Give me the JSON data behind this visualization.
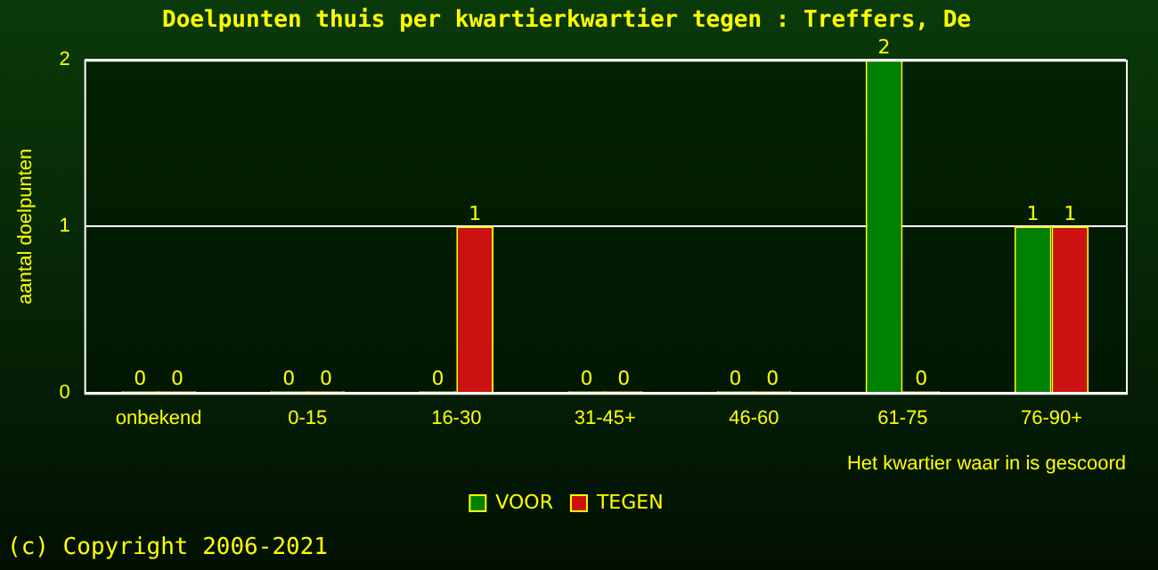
{
  "chart_data": {
    "type": "bar",
    "title": "Doelpunten thuis per kwartierkwartier tegen : Treffers, De",
    "xlabel": "Het kwartier waar in is gescoord",
    "ylabel": "aantal doelpunten",
    "categories": [
      "onbekend",
      "0-15",
      "16-30",
      "31-45+",
      "46-60",
      "61-75",
      "76-90+"
    ],
    "series": [
      {
        "name": "VOOR",
        "color": "#008000",
        "values": [
          0,
          0,
          0,
          0,
          0,
          2,
          1
        ]
      },
      {
        "name": "TEGEN",
        "color": "#cc1111",
        "values": [
          0,
          0,
          1,
          0,
          0,
          0,
          1
        ]
      }
    ],
    "ylim": [
      0,
      2
    ],
    "yticks": [
      0,
      1,
      2
    ],
    "grid": "y",
    "legend": "bottom",
    "data_labels": true,
    "annotations": [
      "(c) Copyright 2006-2021"
    ]
  }
}
